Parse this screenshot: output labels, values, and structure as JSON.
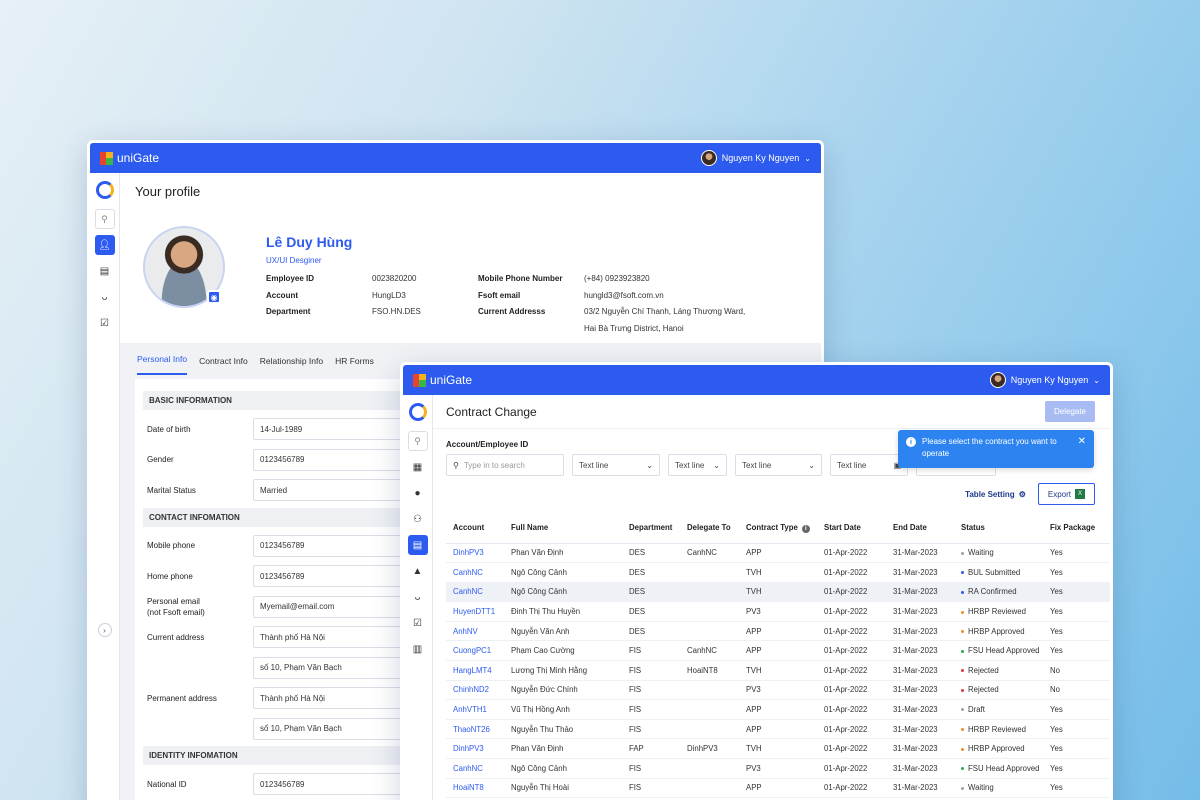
{
  "app": {
    "name": "uniGate",
    "user_name": "Nguyen Ky Nguyen"
  },
  "profile_window": {
    "title": "Your profile",
    "name": "Lê Duy Hùng",
    "role": "UX/UI Desginer",
    "employee_id_label": "Employee ID",
    "employee_id": "0023820200",
    "account_label": "Account",
    "account": "HungLD3",
    "department_label": "Department",
    "department": "FSO.HN.DES",
    "mobile_label": "Mobile Phone Number",
    "mobile": "(+84) 0923923820",
    "fsoft_email_label": "Fsoft email",
    "fsoft_email": "hungld3@fsoft.com.vn",
    "address_label": "Current Addresss",
    "address_line1": "03/2 Nguyễn Chí Thanh, Láng Thượng Ward,",
    "address_line2": "Hai Bà Trưng District, Hanoi",
    "tabs": [
      "Personal Info",
      "Contract Info",
      "Relationship Info",
      "HR Forms"
    ],
    "sections": {
      "basic": "BASIC INFORMATION",
      "contact": "CONTACT INFOMATION",
      "identity": "IDENTITY INFOMATION"
    },
    "basic_fields": [
      {
        "label": "Date of birth",
        "value": "14-Jul-1989"
      },
      {
        "label": "Gender",
        "value": "0123456789"
      },
      {
        "label": "Marital Status",
        "value": "Married"
      }
    ],
    "contact_fields": {
      "mobile_label": "Mobile phone",
      "mobile_value": "0123456789",
      "home_label": "Home phone",
      "home_value": "0123456789",
      "personal_email_label_1": "Personal email",
      "personal_email_label_2": "(not Fsoft email)",
      "personal_email_value": "Myemail@email.com",
      "current_address_label": "Current address",
      "current_address_city": "Thành phố Hà Nội",
      "current_address_street": "số 10, Phạm Văn Bạch",
      "permanent_address_label": "Permanent address",
      "permanent_address_city": "Thành phố Hà Nội",
      "permanent_address_street": "số 10, Phạm Văn Bạch"
    },
    "identity_fields": {
      "national_id_label": "National ID",
      "national_id_value": "0123456789"
    }
  },
  "contract_window": {
    "title": "Contract Change",
    "delegate_button": "Delegate",
    "filter_label": "Account/Employee ID",
    "search_placeholder": "Type in to search",
    "filter_1": "Text line",
    "filter_2": "Text line",
    "filter_3": "Text line",
    "filter_4": "Text line",
    "toast_message": "Please select the contract you want to operate",
    "table_setting": "Table Setting",
    "export_button": "Export",
    "columns": [
      "Account",
      "Full Name",
      "Department",
      "Delegate To",
      "Contract Type",
      "Start Date",
      "End Date",
      "Status",
      "Fix Package"
    ],
    "rows": [
      {
        "account": "DinhPV3",
        "name": "Phan Văn Định",
        "dept": "DES",
        "delegate": "CanhNC",
        "type": "APP",
        "start": "01-Apr-2022",
        "end": "31-Mar-2023",
        "status": "Waiting",
        "status_color": "#9aa3ad",
        "fix": "Yes"
      },
      {
        "account": "CanhNC",
        "name": "Ngô Công Cảnh",
        "dept": "DES",
        "delegate": "",
        "type": "TVH",
        "start": "01-Apr-2022",
        "end": "31-Mar-2023",
        "status": "BUL Submitted",
        "status_color": "#2d5bef",
        "fix": "Yes"
      },
      {
        "account": "CanhNC",
        "name": "Ngô Công Cảnh",
        "dept": "DES",
        "delegate": "",
        "type": "TVH",
        "start": "01-Apr-2022",
        "end": "31-Mar-2023",
        "status": "RA Confirmed",
        "status_color": "#2d5bef",
        "fix": "Yes"
      },
      {
        "account": "HuyenDTT1",
        "name": "Đinh Thị Thu Huyền",
        "dept": "DES",
        "delegate": "",
        "type": "PV3",
        "start": "01-Apr-2022",
        "end": "31-Mar-2023",
        "status": "HRBP Reviewed",
        "status_color": "#f28c28",
        "fix": "Yes"
      },
      {
        "account": "AnhNV",
        "name": "Nguyễn Văn Anh",
        "dept": "DES",
        "delegate": "",
        "type": "APP",
        "start": "01-Apr-2022",
        "end": "31-Mar-2023",
        "status": "HRBP Approved",
        "status_color": "#f28c28",
        "fix": "Yes"
      },
      {
        "account": "CuongPC1",
        "name": "Phạm Cao Cường",
        "dept": "FIS",
        "delegate": "CanhNC",
        "type": "APP",
        "start": "01-Apr-2022",
        "end": "31-Mar-2023",
        "status": "FSU Head Approved",
        "status_color": "#2fa84f",
        "fix": "Yes"
      },
      {
        "account": "HangLMT4",
        "name": "Lương Thị Minh Hằng",
        "dept": "FIS",
        "delegate": "HoaiNT8",
        "type": "TVH",
        "start": "01-Apr-2022",
        "end": "31-Mar-2023",
        "status": "Rejected",
        "status_color": "#e33b3b",
        "fix": "No"
      },
      {
        "account": "ChinhND2",
        "name": "Nguyễn Đức Chính",
        "dept": "FIS",
        "delegate": "",
        "type": "PV3",
        "start": "01-Apr-2022",
        "end": "31-Mar-2023",
        "status": "Rejected",
        "status_color": "#e33b3b",
        "fix": "No"
      },
      {
        "account": "AnhVTH1",
        "name": "Vũ Thị Hồng Anh",
        "dept": "FIS",
        "delegate": "",
        "type": "APP",
        "start": "01-Apr-2022",
        "end": "31-Mar-2023",
        "status": "Draft",
        "status_color": "#9aa3ad",
        "fix": "Yes"
      },
      {
        "account": "ThaoNT26",
        "name": "Nguyễn Thu Thảo",
        "dept": "FIS",
        "delegate": "",
        "type": "APP",
        "start": "01-Apr-2022",
        "end": "31-Mar-2023",
        "status": "HRBP Reviewed",
        "status_color": "#f28c28",
        "fix": "Yes"
      },
      {
        "account": "DinhPV3",
        "name": "Phan Văn Định",
        "dept": "FAP",
        "delegate": "DinhPV3",
        "type": "TVH",
        "start": "01-Apr-2022",
        "end": "31-Mar-2023",
        "status": "HRBP Approved",
        "status_color": "#f28c28",
        "fix": "Yes"
      },
      {
        "account": "CanhNC",
        "name": "Ngô Công Cảnh",
        "dept": "FIS",
        "delegate": "",
        "type": "PV3",
        "start": "01-Apr-2022",
        "end": "31-Mar-2023",
        "status": "FSU Head Approved",
        "status_color": "#2fa84f",
        "fix": "Yes"
      },
      {
        "account": "HoaiNT8",
        "name": "Nguyễn Thị Hoài",
        "dept": "FIS",
        "delegate": "",
        "type": "APP",
        "start": "01-Apr-2022",
        "end": "31-Mar-2023",
        "status": "Waiting",
        "status_color": "#9aa3ad",
        "fix": "Yes"
      }
    ]
  }
}
